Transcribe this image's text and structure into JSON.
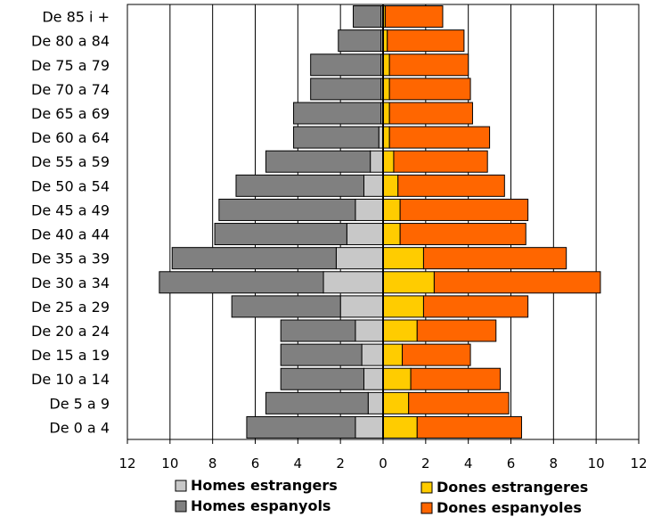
{
  "chart_data": {
    "type": "bar",
    "orientation": "horizontal-pyramid",
    "categories": [
      "De 0 a 4",
      "De 5 a 9",
      "De 10 a 14",
      "De 15 a 19",
      "De 20 a 24",
      "De 25 a 29",
      "De 30 a 34",
      "De 35 a 39",
      "De 40 a 44",
      "De 45 a 49",
      "De 50 a 54",
      "De 55 a 59",
      "De 60 a 64",
      "De 65 a 69",
      "De 70 a 74",
      "De 75 a 79",
      "De 80 a 84",
      "De 85 i +"
    ],
    "series": [
      {
        "name": "Homes estrangers",
        "side": "left",
        "color": "#c8c8c8",
        "values": [
          1.3,
          0.7,
          0.9,
          1.0,
          1.3,
          2.0,
          2.8,
          2.2,
          1.7,
          1.3,
          0.9,
          0.6,
          0.2,
          0.1,
          0.1,
          0.1,
          0.1,
          0.1
        ]
      },
      {
        "name": "Homes espanyols",
        "side": "left",
        "color": "#808080",
        "values": [
          5.1,
          4.8,
          3.9,
          3.8,
          3.5,
          5.1,
          7.7,
          7.7,
          6.2,
          6.4,
          6.0,
          4.9,
          4.0,
          4.1,
          3.3,
          3.3,
          2.0,
          1.3
        ]
      },
      {
        "name": "Dones estrangeres",
        "side": "right",
        "color": "#ffcc00",
        "values": [
          1.6,
          1.2,
          1.3,
          0.9,
          1.6,
          1.9,
          2.4,
          1.9,
          0.8,
          0.8,
          0.7,
          0.5,
          0.3,
          0.3,
          0.3,
          0.3,
          0.2,
          0.1
        ]
      },
      {
        "name": "Dones espanyoles",
        "side": "right",
        "color": "#ff6600",
        "values": [
          4.9,
          4.7,
          4.2,
          3.2,
          3.7,
          4.9,
          7.8,
          6.7,
          5.9,
          6.0,
          5.0,
          4.4,
          4.7,
          3.9,
          3.8,
          3.7,
          3.6,
          2.7
        ]
      }
    ],
    "xlim": [
      -12,
      12
    ],
    "xticks": [
      -12,
      -10,
      -8,
      -6,
      -4,
      -2,
      0,
      2,
      4,
      6,
      8,
      10,
      12
    ],
    "tick_labels": [
      "12",
      "10",
      "8",
      "6",
      "4",
      "2",
      "0",
      "2",
      "4",
      "6",
      "8",
      "10",
      "12"
    ],
    "stacked": true,
    "grid": "vertical",
    "legend": {
      "position": "bottom",
      "items": [
        {
          "label": "Homes estrangers",
          "color": "#c8c8c8"
        },
        {
          "label": "Homes espanyols",
          "color": "#808080"
        },
        {
          "label": "Dones estrangeres",
          "color": "#ffcc00"
        },
        {
          "label": "Dones espanyoles",
          "color": "#ff6600"
        }
      ]
    }
  }
}
